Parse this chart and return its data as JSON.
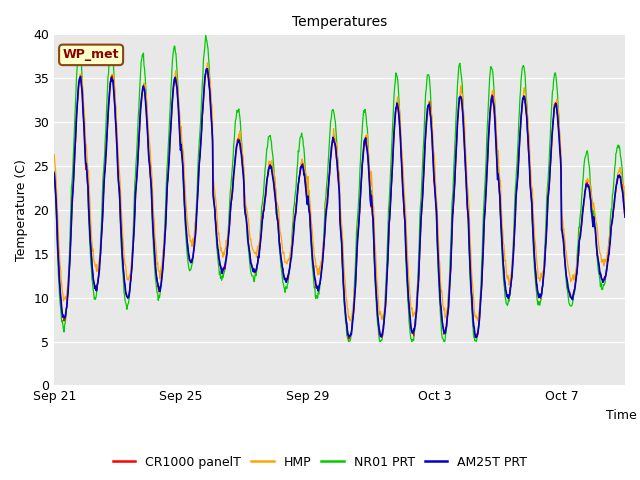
{
  "title": "Temperatures",
  "xlabel": "Time",
  "ylabel": "Temperature (C)",
  "ylim": [
    0,
    40
  ],
  "yticks": [
    0,
    5,
    10,
    15,
    20,
    25,
    30,
    35,
    40
  ],
  "bg_color": "#e8e8e8",
  "fig_bg_color": "#ffffff",
  "annotation_text": "WP_met",
  "annotation_box_color": "#ffffcc",
  "annotation_border_color": "#8b4513",
  "annotation_text_color": "#8b0000",
  "series_colors": [
    "#ff0000",
    "#ffa500",
    "#00cc00",
    "#0000cc"
  ],
  "series_labels": [
    "CR1000 panelT",
    "HMP",
    "NR01 PRT",
    "AM25T PRT"
  ],
  "x_tick_labels": [
    "Sep 21",
    "Sep 25",
    "Sep 29",
    "Oct 3",
    "Oct 7"
  ],
  "x_tick_positions": [
    0,
    4,
    8,
    12,
    16
  ],
  "total_days": 18,
  "n_points": 1000
}
